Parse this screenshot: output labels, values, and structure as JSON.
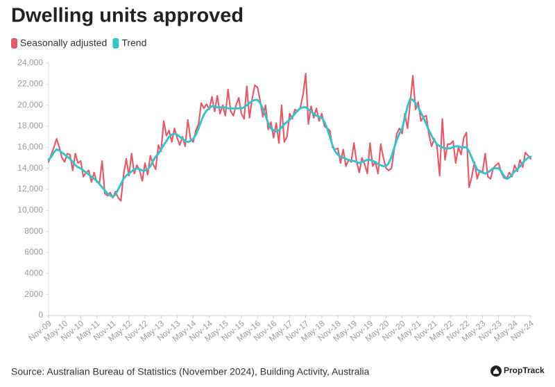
{
  "chart_data": {
    "type": "line",
    "title": "Dwelling units approved",
    "source": "Source: Australian Bureau of Statistics (November 2024), Building Activity, Australia",
    "brand": "PropTrack",
    "categories": [
      "Nov-09",
      null,
      null,
      null,
      null,
      null,
      "May-10",
      null,
      null,
      null,
      null,
      null,
      "Nov-10",
      null,
      null,
      null,
      null,
      null,
      "May-11",
      null,
      null,
      null,
      null,
      null,
      "Nov-11",
      null,
      null,
      null,
      null,
      null,
      "May-12",
      null,
      null,
      null,
      null,
      null,
      "Nov-12",
      null,
      null,
      null,
      null,
      null,
      "May-13",
      null,
      null,
      null,
      null,
      null,
      "Nov-13",
      null,
      null,
      null,
      null,
      null,
      "May-14",
      null,
      null,
      null,
      null,
      null,
      "Nov-14",
      null,
      null,
      null,
      null,
      null,
      "May-15",
      null,
      null,
      null,
      null,
      null,
      "Nov-15",
      null,
      null,
      null,
      null,
      null,
      "May-16",
      null,
      null,
      null,
      null,
      null,
      "Nov-16",
      null,
      null,
      null,
      null,
      null,
      "May-17",
      null,
      null,
      null,
      null,
      null,
      "Nov-17",
      null,
      null,
      null,
      null,
      null,
      "May-18",
      null,
      null,
      null,
      null,
      null,
      "Nov-18",
      null,
      null,
      null,
      null,
      null,
      "May-19",
      null,
      null,
      null,
      null,
      null,
      "Nov-19",
      null,
      null,
      null,
      null,
      null,
      "May-20",
      null,
      null,
      null,
      null,
      null,
      "Nov-20",
      null,
      null,
      null,
      null,
      null,
      "May-21",
      null,
      null,
      null,
      null,
      null,
      "Nov-21",
      null,
      null,
      null,
      null,
      null,
      "May-22",
      null,
      null,
      null,
      null,
      null,
      "Nov-22",
      null,
      null,
      null,
      null,
      null,
      "May-23",
      null,
      null,
      null,
      null,
      null,
      "Nov-23",
      null,
      null,
      null,
      null,
      null,
      "May-24",
      null,
      null,
      null,
      null,
      null,
      "Nov-24"
    ],
    "series": [
      {
        "name": "Seasonally adjusted",
        "color": "#e05c6b",
        "values": [
          14600,
          15300,
          16000,
          16800,
          16000,
          15000,
          14600,
          15400,
          15300,
          13800,
          15400,
          14500,
          14700,
          13200,
          13600,
          13800,
          12700,
          13600,
          12700,
          12600,
          14700,
          11600,
          11400,
          11700,
          11200,
          11800,
          11200,
          10900,
          13400,
          14900,
          13300,
          15400,
          13500,
          14300,
          13800,
          12800,
          14500,
          13400,
          15200,
          14400,
          13900,
          16200,
          15600,
          18500,
          17100,
          17600,
          16500,
          17800,
          16900,
          16200,
          17000,
          16100,
          18600,
          16800,
          16500,
          17600,
          18200,
          20200,
          19700,
          20100,
          19600,
          20800,
          19400,
          20900,
          19200,
          20000,
          19000,
          21500,
          19400,
          19000,
          20000,
          20700,
          19200,
          18700,
          21800,
          18800,
          20600,
          21900,
          21700,
          20400,
          18900,
          20000,
          17700,
          18400,
          16900,
          18300,
          16400,
          20000,
          16500,
          17000,
          19200,
          18700,
          19600,
          19400,
          19800,
          21000,
          23000,
          18200,
          19900,
          18800,
          19700,
          18500,
          19200,
          18000,
          17800,
          17600,
          16000,
          15800,
          15900,
          14500,
          15800,
          14200,
          14800,
          14600,
          16400,
          14600,
          13600,
          15000,
          14400,
          13500,
          16400,
          14200,
          14600,
          13500,
          16300,
          15000,
          14000,
          13800,
          14000,
          15700,
          17300,
          17800,
          17300,
          19200,
          17800,
          20200,
          22800,
          19600,
          20300,
          18500,
          18900,
          19000,
          17200,
          16100,
          16800,
          16100,
          13300,
          18700,
          14800,
          16300,
          16300,
          16600,
          14500,
          16000,
          15300,
          16900,
          17400,
          12200,
          13200,
          14600,
          13000,
          13800,
          13600,
          15400,
          13200,
          13000,
          14000,
          14300,
          14500,
          13600,
          13100,
          13000,
          13600,
          13200,
          14300,
          13700,
          14800,
          14100,
          15500,
          15200,
          14900
        ]
      },
      {
        "name": "Trend",
        "color": "#38c3c9",
        "values": [
          14800,
          15100,
          15500,
          15800,
          15700,
          15500,
          15300,
          15100,
          14900,
          14600,
          14300,
          14100,
          14000,
          13800,
          13600,
          13400,
          13200,
          13000,
          12800,
          12500,
          12200,
          11900,
          11600,
          11400,
          11300,
          11500,
          12000,
          12500,
          13000,
          13300,
          13500,
          13700,
          13900,
          14000,
          13900,
          13800,
          13800,
          13900,
          14200,
          14700,
          15100,
          15400,
          15800,
          16200,
          16600,
          17000,
          17200,
          17300,
          17200,
          17000,
          16800,
          16600,
          16500,
          16600,
          16800,
          17200,
          17800,
          18500,
          19100,
          19500,
          19700,
          19900,
          19900,
          19800,
          19800,
          19800,
          19800,
          19700,
          19700,
          19700,
          19700,
          19700,
          19700,
          19800,
          20000,
          20200,
          20400,
          20500,
          20500,
          20200,
          19700,
          19000,
          18300,
          17800,
          17600,
          17500,
          17600,
          17900,
          18200,
          18400,
          18600,
          18900,
          19200,
          19500,
          19700,
          19800,
          19800,
          19600,
          19400,
          19200,
          19000,
          18900,
          18800,
          18400,
          17800,
          17000,
          16200,
          15600,
          15300,
          15100,
          15000,
          14900,
          14800,
          14700,
          14700,
          14600,
          14500,
          14600,
          14700,
          14800,
          14800,
          14700,
          14600,
          14400,
          14300,
          14200,
          14200,
          14500,
          15100,
          15900,
          16700,
          17300,
          17800,
          18800,
          19900,
          20600,
          20500,
          20200,
          19800,
          19300,
          18800,
          18200,
          17600,
          17100,
          16600,
          16300,
          16100,
          16000,
          15900,
          15900,
          15900,
          16000,
          16100,
          16100,
          16000,
          16000,
          16000,
          15600,
          15000,
          14400,
          13900,
          13700,
          13600,
          13500,
          13600,
          13800,
          14000,
          14000,
          14000,
          13700,
          13300,
          13000,
          13100,
          13400,
          13700,
          13900,
          14200,
          14500,
          14800,
          15000,
          15100
        ]
      }
    ],
    "ylim": [
      0,
      24000
    ],
    "yticks": [
      0,
      2000,
      4000,
      6000,
      8000,
      {
        "value": 10000,
        "label": "10,000"
      },
      {
        "value": 12000,
        "label": "12,000"
      },
      {
        "value": 14000,
        "label": "14,000"
      },
      {
        "value": 16000,
        "label": "16,000"
      },
      {
        "value": 18000,
        "label": "18,000"
      },
      {
        "value": 20000,
        "label": "20,000"
      },
      {
        "value": 22000,
        "label": "22,000"
      },
      {
        "value": 24000,
        "label": "24,000"
      }
    ],
    "grid": false
  }
}
